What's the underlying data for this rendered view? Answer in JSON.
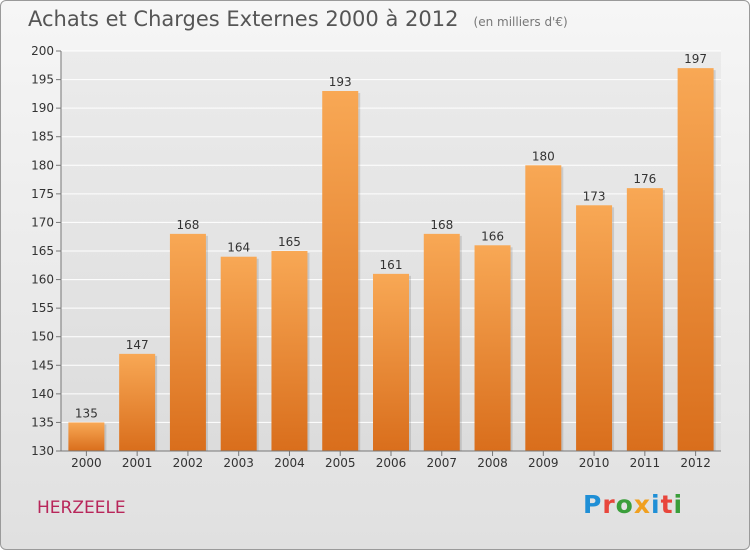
{
  "title": "Achats et Charges Externes 2000 à 2012",
  "subtitle": "(en milliers d'€)",
  "commune": "HERZEELE",
  "logo": {
    "text": "Proxiti",
    "colors": [
      "#1f8fd6",
      "#e8463c",
      "#3a9e3a",
      "#f0a020"
    ]
  },
  "colors": {
    "bar_light": "#f8a855",
    "bar_dark": "#d96e1c",
    "commune": "#b8265a"
  },
  "chart_data": {
    "type": "bar",
    "categories": [
      "2000",
      "2001",
      "2002",
      "2003",
      "2004",
      "2005",
      "2006",
      "2007",
      "2008",
      "2009",
      "2010",
      "2011",
      "2012"
    ],
    "values": [
      135,
      147,
      168,
      164,
      165,
      193,
      161,
      168,
      166,
      180,
      173,
      176,
      197
    ],
    "ylim": [
      130,
      200
    ],
    "yticks": [
      130,
      135,
      140,
      145,
      150,
      155,
      160,
      165,
      170,
      175,
      180,
      185,
      190,
      195,
      200
    ],
    "grid": true,
    "legend": "none"
  }
}
